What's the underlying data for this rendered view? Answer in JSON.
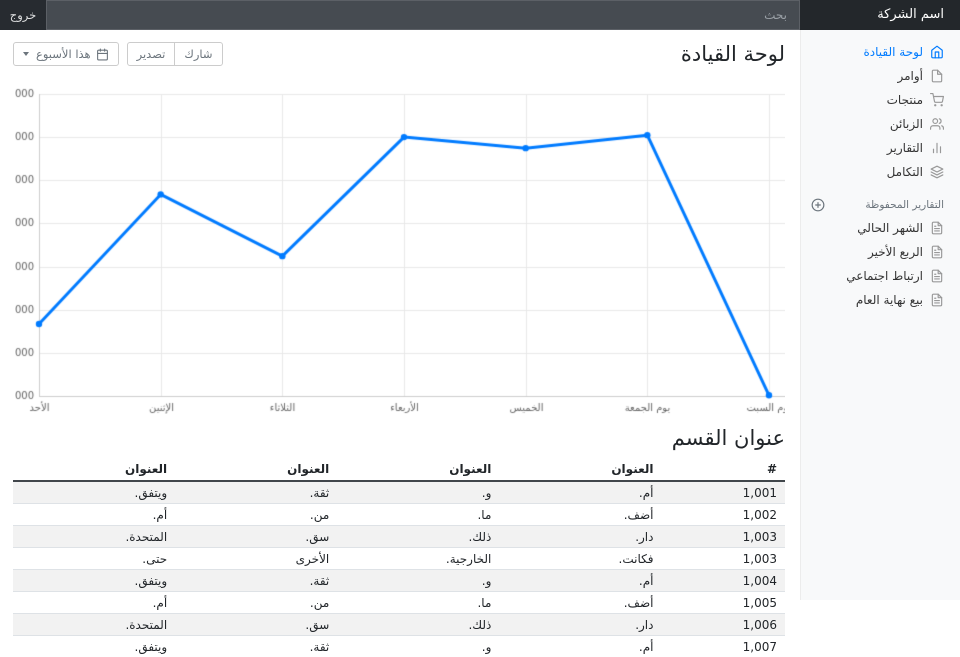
{
  "navbar": {
    "brand": "اسم الشركة",
    "search_placeholder": "بحث",
    "signout_label": "خروج"
  },
  "sidebar": {
    "items": [
      {
        "label": "لوحة القيادة",
        "icon": "home-icon",
        "active": true
      },
      {
        "label": "أوامر",
        "icon": "file-icon",
        "active": false
      },
      {
        "label": "منتجات",
        "icon": "shopping-cart-icon",
        "active": false
      },
      {
        "label": "الزبائن",
        "icon": "users-icon",
        "active": false
      },
      {
        "label": "التقارير",
        "icon": "bar-chart-icon",
        "active": false
      },
      {
        "label": "التكامل",
        "icon": "layers-icon",
        "active": false
      }
    ],
    "saved_reports_header": "التقارير المحفوظة",
    "saved_reports": [
      {
        "label": "الشهر الحالي"
      },
      {
        "label": "الربع الأخير"
      },
      {
        "label": "ارتباط اجتماعي"
      },
      {
        "label": "بيع نهاية العام"
      }
    ]
  },
  "main": {
    "title": "لوحة القيادة",
    "toolbar": {
      "share_label": "شارك",
      "export_label": "تصدير",
      "week_label": "هذا الأسبوع"
    },
    "section_title": "عنوان القسم"
  },
  "chart_data": {
    "type": "line",
    "x": [
      "الأحد",
      "الإثنين",
      "الثلاثاء",
      "الأربعاء",
      "الخميس",
      "يوم الجمعة",
      "يوم السبت"
    ],
    "series": [
      {
        "name": "",
        "values": [
          15339,
          21345,
          18483,
          24003,
          23489,
          24092,
          12034
        ]
      }
    ],
    "ylim": [
      12000,
      26000
    ],
    "ytick_step": 2000,
    "line_color": "#007bff",
    "grid_color": "#e8e8e8",
    "axis_color": "#cccccc",
    "tick_color": "#666666",
    "grid": true,
    "legend": false
  },
  "table": {
    "headers": [
      "#",
      "العنوان",
      "العنوان",
      "العنوان",
      "العنوان"
    ],
    "rows": [
      [
        "1,001",
        "أم.",
        "و.",
        "ثقة.",
        "ويتفق."
      ],
      [
        "1,002",
        "أضف.",
        "ما.",
        "من.",
        "أم."
      ],
      [
        "1,003",
        "دار.",
        "ذلك.",
        "سق.",
        "المتحدة."
      ],
      [
        "1,003",
        "فكانت.",
        "الخارجية.",
        "الأخرى",
        "حتى."
      ],
      [
        "1,004",
        "أم.",
        "و.",
        "ثقة.",
        "ويتفق."
      ],
      [
        "1,005",
        "أضف.",
        "ما.",
        "من.",
        "أم."
      ],
      [
        "1,006",
        "دار.",
        "ذلك.",
        "سق.",
        "المتحدة."
      ],
      [
        "1,007",
        "أم.",
        "و.",
        "ثقة.",
        "ويتفق."
      ]
    ]
  }
}
